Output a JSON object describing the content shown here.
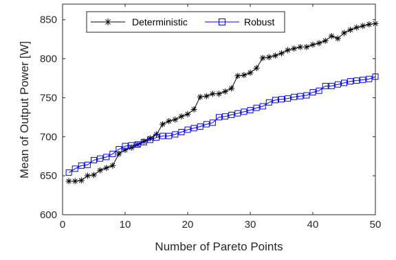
{
  "chart_data": {
    "type": "line",
    "title": "",
    "xlabel": "Number of Pareto Points",
    "ylabel": "Mean of Output Power [W]",
    "xlim": [
      0,
      50
    ],
    "ylim": [
      600,
      870
    ],
    "xticks": [
      0,
      10,
      20,
      30,
      40,
      50
    ],
    "yticks": [
      600,
      650,
      700,
      750,
      800,
      850
    ],
    "grid": false,
    "legend_position": "top-left",
    "x": [
      1,
      2,
      3,
      4,
      5,
      6,
      7,
      8,
      9,
      10,
      11,
      12,
      13,
      14,
      15,
      16,
      17,
      18,
      19,
      20,
      21,
      22,
      23,
      24,
      25,
      26,
      27,
      28,
      29,
      30,
      31,
      32,
      33,
      34,
      35,
      36,
      37,
      38,
      39,
      40,
      41,
      42,
      43,
      44,
      45,
      46,
      47,
      48,
      49,
      50
    ],
    "series": [
      {
        "name": "Deterministic",
        "color": "#000000",
        "marker": "asterisk",
        "values": [
          643,
          643,
          644,
          650,
          651,
          657,
          660,
          663,
          678,
          683,
          686,
          690,
          694,
          698,
          703,
          716,
          720,
          722,
          726,
          729,
          735,
          751,
          752,
          755,
          755,
          758,
          762,
          778,
          779,
          782,
          788,
          801,
          802,
          804,
          807,
          811,
          813,
          815,
          815,
          818,
          820,
          823,
          829,
          826,
          833,
          837,
          840,
          842,
          844,
          845
        ]
      },
      {
        "name": "Robust",
        "color": "#0000ff",
        "marker": "square",
        "values": [
          654,
          659,
          663,
          664,
          670,
          672,
          674,
          678,
          684,
          688,
          689,
          690,
          693,
          696,
          699,
          701,
          701,
          703,
          706,
          709,
          711,
          713,
          716,
          718,
          725,
          726,
          728,
          730,
          732,
          734,
          737,
          739,
          744,
          747,
          748,
          749,
          751,
          752,
          753,
          757,
          759,
          765,
          765,
          767,
          769,
          771,
          772,
          773,
          774,
          777
        ]
      }
    ]
  }
}
